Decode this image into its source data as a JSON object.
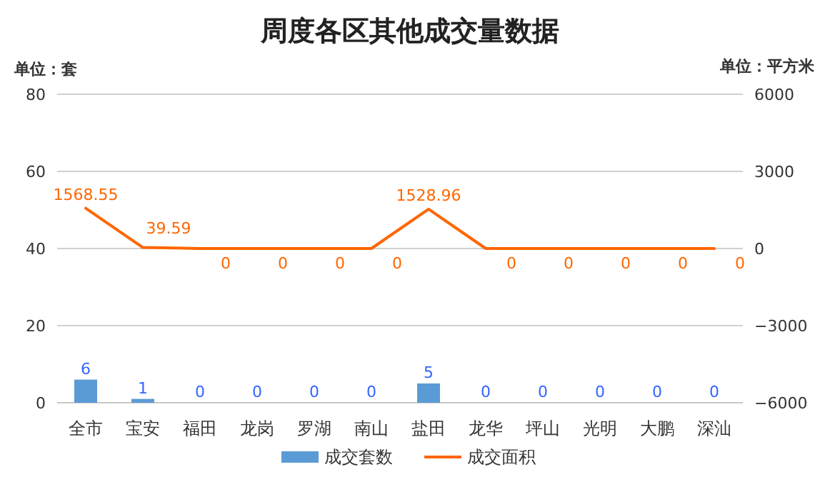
{
  "chart_data": {
    "type": "bar",
    "title": "周度各区其他成交量数据",
    "annotations": [
      "单位：套",
      "单位：平方米"
    ],
    "categories": [
      "全市",
      "宝安",
      "福田",
      "龙岗",
      "罗湖",
      "南山",
      "盐田",
      "龙华",
      "坪山",
      "光明",
      "大鹏",
      "深汕"
    ],
    "series": [
      {
        "name": "成交套数",
        "color": "#5b9bd5",
        "values": [
          6,
          1,
          0,
          0,
          0,
          0,
          5,
          0,
          0,
          0,
          0,
          0
        ]
      },
      {
        "name": "成交面积",
        "type": "line",
        "axis": "y2",
        "color": "#ff6600",
        "values": [
          1568.55,
          39.59,
          0,
          0,
          0,
          0,
          1528.96,
          0,
          0,
          0,
          0,
          0
        ]
      }
    ],
    "ylim": [
      0,
      80
    ],
    "yticks": [
      0,
      20,
      40,
      60,
      80
    ],
    "y2lim": [
      -6000,
      6000
    ],
    "y2ticks": [
      -6000,
      -3000,
      0,
      3000,
      6000
    ],
    "grid": "y",
    "legend": "bottom",
    "data_labels": true
  }
}
